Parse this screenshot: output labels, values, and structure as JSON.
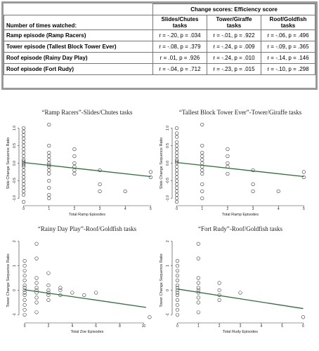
{
  "table": {
    "group_header": "Change scores: Efficiency score",
    "row_header": "Number of times watched:",
    "columns": [
      "Slides/Chutes tasks",
      "Tower/Giraffe tasks",
      "Roof/Goldfish tasks"
    ],
    "rows": [
      [
        "Ramp episode (Ramp Racers)",
        "r = -.20, p = .034",
        "r = -.01, p = .922",
        "r = -.06, p = .496"
      ],
      [
        "Tower episode (Tallest Block Tower Ever)",
        "r = -.08, p = .379",
        "r = -.24, p = .009",
        "r = -.09, p = .365"
      ],
      [
        "Roof episode (Rainy Day Play)",
        "r = .01, p = .926",
        "r = -.24, p = .010",
        "r = -.14, p = .146"
      ],
      [
        "Roof episode (Fort Rudy)",
        "r = -.04, p = .712",
        "r = -.23, p = .015",
        "r = -.10, p = .298"
      ]
    ]
  },
  "chart_data": [
    {
      "type": "scatter",
      "title": "“Ramp Racers”-Slides/Chutes tasks",
      "x_label": "Total Ramp Episodes",
      "y_label": "Slide Change Sequence Ratio",
      "x": [
        0,
        0,
        0,
        0,
        0,
        0,
        0,
        0,
        0,
        0,
        0,
        0,
        0,
        0,
        0,
        0,
        0,
        0,
        0,
        0,
        0,
        0,
        0,
        1,
        1,
        1,
        1,
        1,
        1,
        1,
        1,
        1,
        1,
        1,
        1,
        1,
        1,
        2,
        2,
        2,
        2,
        2,
        2,
        3,
        3,
        3,
        4,
        5,
        5
      ],
      "y": [
        1.0,
        0.9,
        0.8,
        0.7,
        0.6,
        0.5,
        0.4,
        0.3,
        0.2,
        0.1,
        0.05,
        0,
        -0.05,
        -0.1,
        -0.2,
        -0.3,
        -0.4,
        -0.5,
        -0.6,
        -0.7,
        -0.8,
        -0.9,
        -1.1,
        1.1,
        0.5,
        0.3,
        0.2,
        0.1,
        0,
        -0.05,
        -0.1,
        -0.2,
        -0.3,
        -0.5,
        -0.7,
        -0.9,
        -1.0,
        0.4,
        0.2,
        0,
        -0.1,
        -0.2,
        -0.3,
        -0.2,
        -0.6,
        -0.8,
        -0.8,
        -0.25,
        -0.4
      ],
      "fit": {
        "x": [
          0,
          5
        ],
        "y": [
          0.02,
          -0.38
        ],
        "color": "#2e6e3a"
      },
      "xlim": [
        -0.1,
        5.1
      ],
      "ylim": [
        -1.15,
        1.15
      ],
      "xticks": [
        0,
        1,
        2,
        3,
        4,
        5
      ],
      "yticks": [
        {
          "value": -1,
          "label": "-1.0"
        },
        {
          "value": -0.5,
          "label": "-0.5"
        },
        {
          "value": 0,
          "label": "0.0"
        },
        {
          "value": 0.5,
          "label": "0.5"
        },
        {
          "value": 1,
          "label": "1.0"
        }
      ]
    },
    {
      "type": "scatter",
      "title": "“Tallest Block Tower Ever”-Tower/Giraffe tasks",
      "x_label": "Total Ramp Episodes",
      "y_label": "Slide Change Sequence Ratio",
      "x": [
        0,
        0,
        0,
        0,
        0,
        0,
        0,
        0,
        0,
        0,
        0,
        0,
        0,
        0,
        0,
        0,
        0,
        0,
        0,
        0,
        0,
        0,
        1,
        1,
        1,
        1,
        1,
        1,
        1,
        1,
        1,
        1,
        1,
        1,
        2,
        2,
        2,
        2,
        2,
        3,
        3,
        3,
        4,
        5,
        5
      ],
      "y": [
        1.0,
        0.85,
        0.75,
        0.6,
        0.5,
        0.4,
        0.3,
        0.2,
        0.1,
        0.05,
        0,
        -0.1,
        -0.2,
        -0.3,
        -0.4,
        -0.5,
        -0.6,
        -0.7,
        -0.8,
        -0.9,
        -1.0,
        -1.1,
        1.1,
        0.5,
        0.3,
        0.2,
        0.1,
        0,
        -0.1,
        -0.2,
        -0.3,
        -0.6,
        -0.8,
        -1.0,
        0.4,
        0.2,
        0,
        -0.1,
        -0.3,
        -0.2,
        -0.6,
        -0.8,
        -0.8,
        -0.25,
        -0.4
      ],
      "fit": {
        "x": [
          0,
          5
        ],
        "y": [
          0.02,
          -0.38
        ],
        "color": "#2e6e3a"
      },
      "xlim": [
        -0.1,
        5.1
      ],
      "ylim": [
        -1.15,
        1.15
      ],
      "xticks": [
        0,
        1,
        2,
        3,
        4,
        5
      ],
      "yticks": [
        {
          "value": -1,
          "label": "-1.0"
        },
        {
          "value": -0.5,
          "label": "-0.5"
        },
        {
          "value": 0,
          "label": "0.0"
        },
        {
          "value": 0.5,
          "label": "0.5"
        },
        {
          "value": 1,
          "label": "1.0"
        }
      ]
    },
    {
      "type": "scatter",
      "title": "“Rainy Day Play”-Roof/Goldfish tasks",
      "x_label": "Total Zoe Episodes",
      "y_label": "Tower Change Sequence Ratio",
      "x": [
        0,
        0,
        0,
        0,
        0,
        0,
        0,
        0,
        0,
        0,
        0,
        0,
        0,
        0,
        1,
        1,
        1,
        1,
        1,
        1,
        1,
        1,
        1,
        1,
        2,
        2,
        2,
        2,
        2,
        2,
        3,
        3,
        3,
        4,
        5,
        6,
        10.5
      ],
      "y": [
        1.2,
        1.0,
        0.8,
        0.6,
        0.4,
        0.2,
        0.1,
        0,
        -0.1,
        -0.2,
        -0.4,
        -0.6,
        -0.8,
        -1.0,
        1.9,
        1.3,
        0.5,
        0.3,
        0.1,
        0,
        -0.1,
        -0.3,
        -0.5,
        -0.9,
        0.7,
        0.2,
        0,
        -0.1,
        -0.2,
        -0.4,
        0.1,
        0,
        -0.2,
        -0.1,
        -0.2,
        -0.1,
        -1.1
      ],
      "fit": {
        "x": [
          0,
          10.2
        ],
        "y": [
          0.02,
          -0.7
        ],
        "color": "#2e6e3a"
      },
      "xlim": [
        -0.3,
        10.8
      ],
      "ylim": [
        -1.25,
        2.05
      ],
      "xticks": [
        0,
        2,
        4,
        6,
        8,
        10
      ],
      "yticks": [
        -1,
        0,
        1,
        2
      ]
    },
    {
      "type": "scatter",
      "title": "“Fort Rudy”-Roof/Goldfish tasks",
      "x_label": "Total Rudy Episodes",
      "y_label": "Tower Change Sequence Ratio",
      "x": [
        0,
        0,
        0,
        0,
        0,
        0,
        0,
        0,
        0,
        0,
        0,
        0,
        0,
        0,
        1,
        1,
        1,
        1,
        1,
        1,
        1,
        1,
        1,
        1,
        2,
        2,
        2,
        2,
        3,
        6
      ],
      "y": [
        1.2,
        1.0,
        0.8,
        0.6,
        0.4,
        0.2,
        0.1,
        0,
        -0.1,
        -0.2,
        -0.4,
        -0.6,
        -0.8,
        -1.0,
        1.9,
        1.3,
        0.5,
        0.3,
        0.1,
        0,
        -0.1,
        -0.3,
        -0.5,
        -0.9,
        0.3,
        0,
        -0.2,
        -0.4,
        -0.1,
        -1.1
      ],
      "fit": {
        "x": [
          0,
          6
        ],
        "y": [
          0.05,
          -0.75
        ],
        "color": "#2e6e3a"
      },
      "xlim": [
        -0.15,
        6.15
      ],
      "ylim": [
        -1.25,
        2.05
      ],
      "xticks": [
        0,
        1,
        2,
        3,
        4,
        5,
        6
      ],
      "yticks": [
        -1,
        0,
        1,
        2
      ]
    }
  ]
}
